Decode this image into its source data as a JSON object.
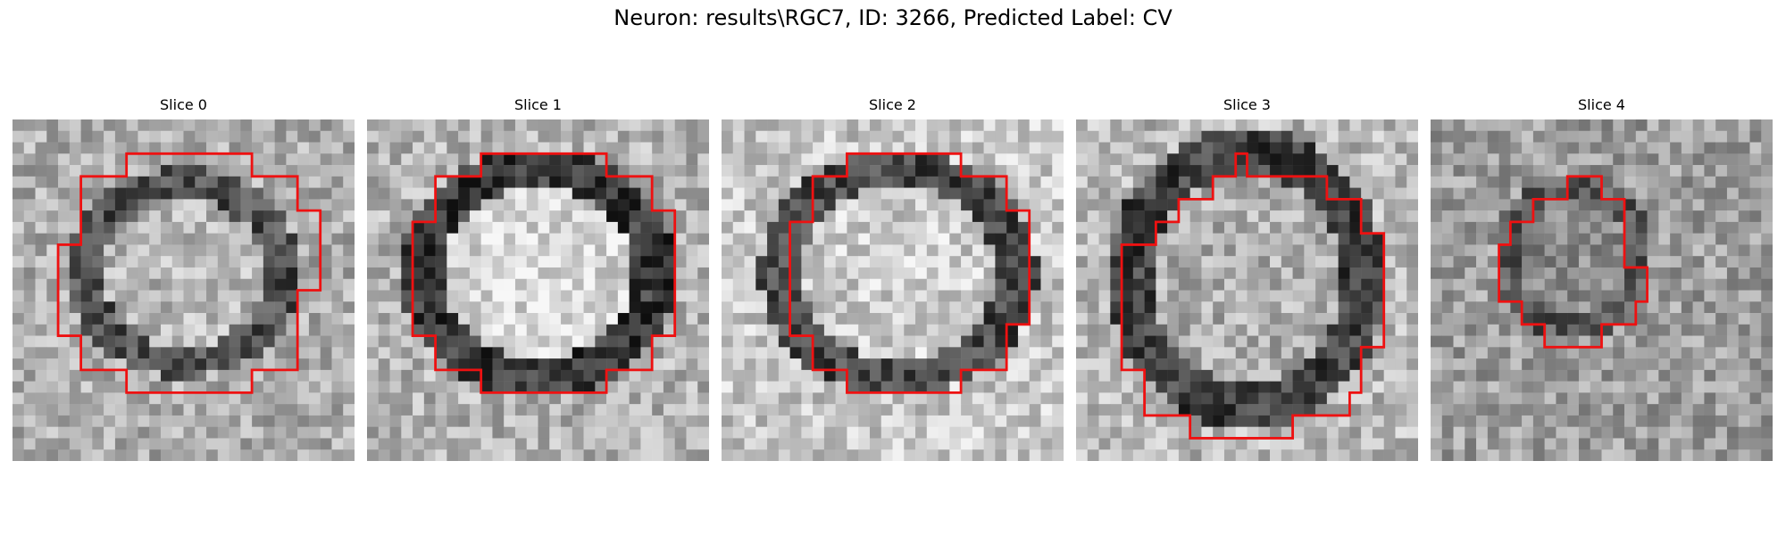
{
  "figure": {
    "title": "Neuron: results\\RGC7, ID: 3266, Predicted Label: CV"
  },
  "panels": [
    {
      "title": "Slice 0",
      "outline_color": "#ee1111"
    },
    {
      "title": "Slice 1",
      "outline_color": "#ee1111"
    },
    {
      "title": "Slice 2",
      "outline_color": "#ee1111"
    },
    {
      "title": "Slice 3",
      "outline_color": "#ee1111"
    },
    {
      "title": "Slice 4",
      "outline_color": "#ee1111"
    }
  ]
}
